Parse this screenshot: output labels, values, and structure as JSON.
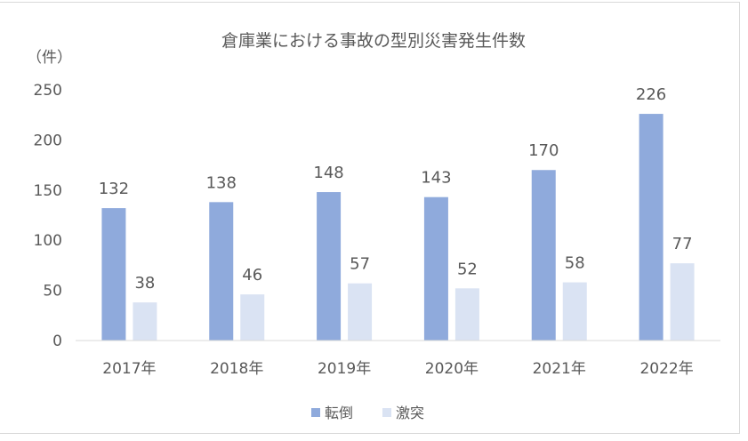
{
  "chart_data": {
    "type": "bar",
    "title": "倉庫業における事故の型別災害発生件数",
    "ylabel": "（件）",
    "categories": [
      "2017年",
      "2018年",
      "2019年",
      "2020年",
      "2021年",
      "2022年"
    ],
    "series": [
      {
        "name": "転倒",
        "values": [
          132,
          138,
          148,
          143,
          170,
          226
        ],
        "color": "#8faadc"
      },
      {
        "name": "激突",
        "values": [
          38,
          46,
          57,
          52,
          58,
          77
        ],
        "color": "#dae3f3"
      }
    ],
    "ylim": [
      0,
      250
    ],
    "yticks": [
      0,
      50,
      100,
      150,
      200,
      250
    ],
    "grid": false,
    "legend": "bottom",
    "axis_color": "#d9d9d9"
  }
}
